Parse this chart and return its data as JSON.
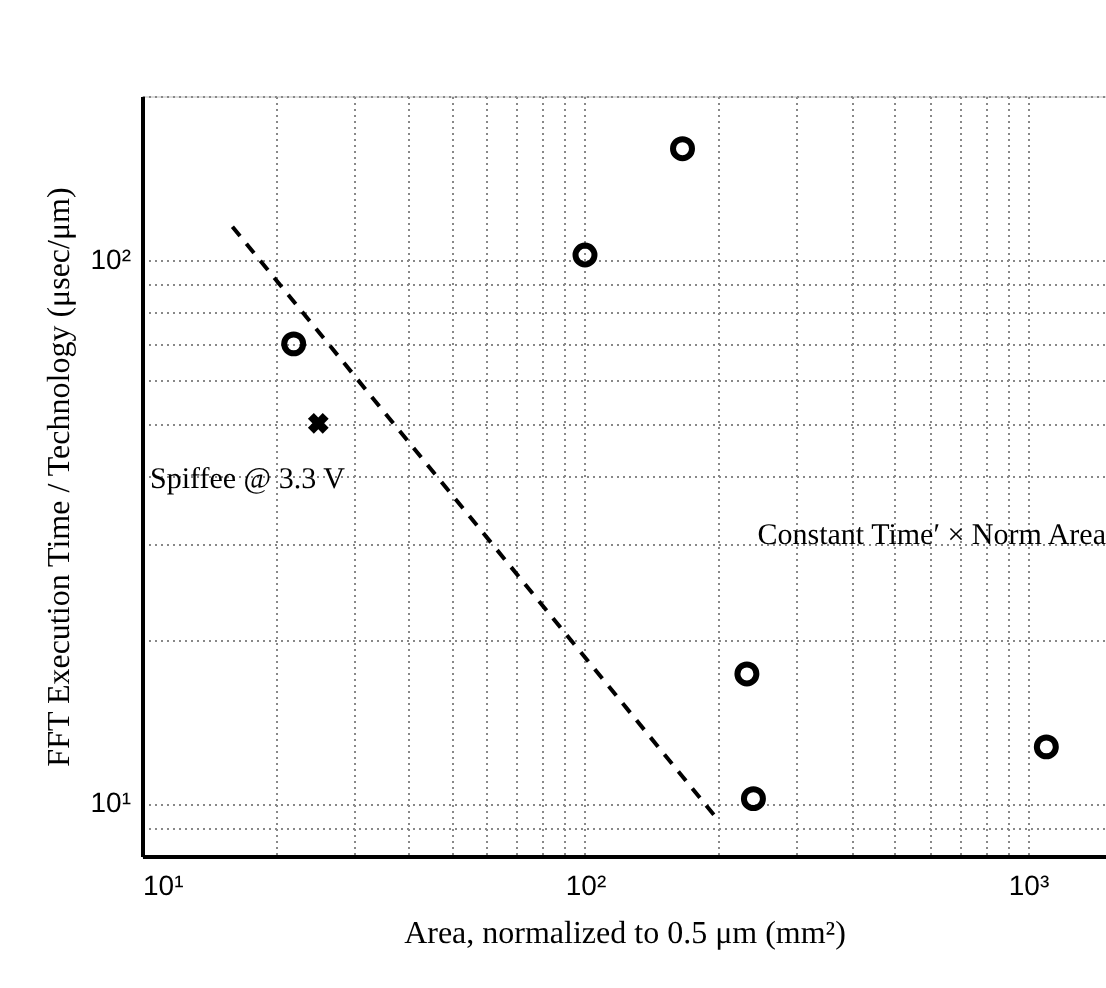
{
  "chart_data": {
    "type": "scatter",
    "xlabel": "Area, normalized to 0.5 μm  (mm²)",
    "ylabel": "FFT Execution Time / Technology (μsec/μm)",
    "log": "xy",
    "grid": true,
    "xlim": [
      10,
      1500
    ],
    "ylim": [
      8,
      200
    ],
    "xticks": [
      {
        "value": 10,
        "label": "10¹"
      },
      {
        "value": 20,
        "label": null
      },
      {
        "value": 30,
        "label": null
      },
      {
        "value": 40,
        "label": null
      },
      {
        "value": 50,
        "label": null
      },
      {
        "value": 60,
        "label": null
      },
      {
        "value": 70,
        "label": null
      },
      {
        "value": 80,
        "label": null
      },
      {
        "value": 90,
        "label": null
      },
      {
        "value": 100,
        "label": "10²"
      },
      {
        "value": 200,
        "label": null
      },
      {
        "value": 300,
        "label": null
      },
      {
        "value": 400,
        "label": null
      },
      {
        "value": 500,
        "label": null
      },
      {
        "value": 600,
        "label": null
      },
      {
        "value": 700,
        "label": null
      },
      {
        "value": 800,
        "label": null
      },
      {
        "value": 900,
        "label": null
      },
      {
        "value": 1000,
        "label": "10³"
      }
    ],
    "yticks": [
      {
        "value": 9,
        "label": null
      },
      {
        "value": 10,
        "label": "10¹"
      },
      {
        "value": 20,
        "label": null
      },
      {
        "value": 30,
        "label": null
      },
      {
        "value": 40,
        "label": null
      },
      {
        "value": 50,
        "label": null
      },
      {
        "value": 60,
        "label": null
      },
      {
        "value": 70,
        "label": null
      },
      {
        "value": 80,
        "label": null
      },
      {
        "value": 90,
        "label": null
      },
      {
        "value": 100,
        "label": "10²"
      },
      {
        "value": 200,
        "label": null
      }
    ],
    "series": [
      {
        "marker": "circle",
        "color": "#000000",
        "x": [
          22,
          100,
          166,
          232,
          240,
          1100
        ],
        "values": [
          70,
          102,
          160,
          17.3,
          10.2,
          12.7
        ]
      },
      {
        "marker": "cross",
        "color": "#000000",
        "x": [
          25
        ],
        "values": [
          50
        ]
      },
      {
        "type": "line",
        "line_style": "dashed",
        "marker": "none",
        "color": "#000000",
        "x": [
          16,
          198
        ],
        "values": [
          115,
          9.4
        ]
      }
    ],
    "annotations": [
      "Spiffee @ 3.3 V",
      "Constant Time′ × Norm Area"
    ]
  }
}
